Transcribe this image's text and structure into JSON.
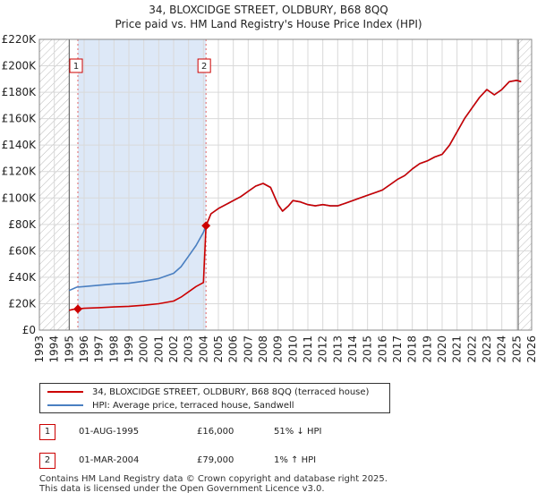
{
  "chart_data": {
    "type": "line",
    "title": "34, BLOXCIDGE STREET, OLDBURY, B68 8QQ",
    "subtitle": "Price paid vs. HM Land Registry's House Price Index (HPI)",
    "xlim": [
      1993,
      2026
    ],
    "ylim": [
      0,
      220000
    ],
    "x_ticks": [
      1993,
      1994,
      1995,
      1996,
      1997,
      1998,
      1999,
      2000,
      2001,
      2002,
      2003,
      2004,
      2005,
      2006,
      2007,
      2008,
      2009,
      2010,
      2011,
      2012,
      2013,
      2014,
      2015,
      2016,
      2017,
      2018,
      2019,
      2020,
      2021,
      2022,
      2023,
      2024,
      2025,
      2026
    ],
    "y_ticks": [
      0,
      20000,
      40000,
      60000,
      80000,
      100000,
      120000,
      140000,
      160000,
      180000,
      200000,
      220000
    ],
    "y_tick_labels": [
      "£0",
      "£20K",
      "£40K",
      "£60K",
      "£80K",
      "£100K",
      "£120K",
      "£140K",
      "£160K",
      "£180K",
      "£200K",
      "£220K"
    ],
    "grid": true,
    "hatched_ranges": [
      [
        1993,
        1995.0
      ],
      [
        2025.1,
        2026
      ]
    ],
    "shaded_range": [
      1995.58,
      2004.17
    ],
    "series": [
      {
        "name": "34, BLOXCIDGE STREET, OLDBURY, B68 8QQ (terraced house)",
        "color": "#cc0000",
        "points": [
          [
            1995.0,
            15000
          ],
          [
            1995.3,
            15800
          ],
          [
            1995.58,
            16000
          ],
          [
            1996.0,
            16500
          ],
          [
            1997.0,
            17000
          ],
          [
            1998.0,
            17500
          ],
          [
            1999.0,
            18000
          ],
          [
            2000.0,
            18800
          ],
          [
            2001.0,
            20000
          ],
          [
            2002.0,
            22000
          ],
          [
            2002.5,
            25000
          ],
          [
            2003.0,
            29000
          ],
          [
            2003.5,
            33000
          ],
          [
            2004.0,
            36000
          ],
          [
            2004.17,
            79000
          ],
          [
            2004.5,
            88000
          ],
          [
            2005.0,
            92000
          ],
          [
            2005.5,
            95000
          ],
          [
            2006.0,
            98000
          ],
          [
            2006.5,
            101000
          ],
          [
            2007.0,
            105000
          ],
          [
            2007.5,
            109000
          ],
          [
            2008.0,
            111000
          ],
          [
            2008.5,
            108000
          ],
          [
            2009.0,
            95000
          ],
          [
            2009.3,
            90000
          ],
          [
            2009.7,
            94000
          ],
          [
            2010.0,
            98000
          ],
          [
            2010.5,
            97000
          ],
          [
            2011.0,
            95000
          ],
          [
            2011.5,
            94000
          ],
          [
            2012.0,
            95000
          ],
          [
            2012.5,
            94000
          ],
          [
            2013.0,
            94000
          ],
          [
            2013.5,
            96000
          ],
          [
            2014.0,
            98000
          ],
          [
            2014.5,
            100000
          ],
          [
            2015.0,
            102000
          ],
          [
            2015.5,
            104000
          ],
          [
            2016.0,
            106000
          ],
          [
            2016.5,
            110000
          ],
          [
            2017.0,
            114000
          ],
          [
            2017.5,
            117000
          ],
          [
            2018.0,
            122000
          ],
          [
            2018.5,
            126000
          ],
          [
            2019.0,
            128000
          ],
          [
            2019.5,
            131000
          ],
          [
            2020.0,
            133000
          ],
          [
            2020.5,
            140000
          ],
          [
            2021.0,
            150000
          ],
          [
            2021.5,
            160000
          ],
          [
            2022.0,
            168000
          ],
          [
            2022.5,
            176000
          ],
          [
            2023.0,
            182000
          ],
          [
            2023.5,
            178000
          ],
          [
            2024.0,
            182000
          ],
          [
            2024.5,
            188000
          ],
          [
            2025.0,
            189000
          ],
          [
            2025.3,
            188000
          ]
        ]
      },
      {
        "name": "HPI: Average price, terraced house, Sandwell",
        "color": "#4a7fc1",
        "points": [
          [
            1995.0,
            30000
          ],
          [
            1995.5,
            32500
          ],
          [
            1996.0,
            33000
          ],
          [
            1997.0,
            34000
          ],
          [
            1998.0,
            35000
          ],
          [
            1999.0,
            35500
          ],
          [
            2000.0,
            37000
          ],
          [
            2001.0,
            39000
          ],
          [
            2002.0,
            43000
          ],
          [
            2002.5,
            48000
          ],
          [
            2003.0,
            56000
          ],
          [
            2003.5,
            64000
          ],
          [
            2004.0,
            74000
          ],
          [
            2004.17,
            79000
          ],
          [
            2004.5,
            88000
          ],
          [
            2005.0,
            92000
          ],
          [
            2005.5,
            95000
          ],
          [
            2006.0,
            98000
          ],
          [
            2006.5,
            101000
          ],
          [
            2007.0,
            105000
          ],
          [
            2007.5,
            109000
          ],
          [
            2008.0,
            111000
          ],
          [
            2008.5,
            108000
          ],
          [
            2009.0,
            95000
          ],
          [
            2009.3,
            90000
          ],
          [
            2009.7,
            94000
          ],
          [
            2010.0,
            98000
          ],
          [
            2010.5,
            97000
          ],
          [
            2011.0,
            95000
          ],
          [
            2011.5,
            94000
          ],
          [
            2012.0,
            95000
          ],
          [
            2012.5,
            94000
          ],
          [
            2013.0,
            94000
          ],
          [
            2013.5,
            96000
          ],
          [
            2014.0,
            98000
          ],
          [
            2014.5,
            100000
          ],
          [
            2015.0,
            102000
          ],
          [
            2015.5,
            104000
          ],
          [
            2016.0,
            106000
          ],
          [
            2016.5,
            110000
          ],
          [
            2017.0,
            114000
          ],
          [
            2017.5,
            117000
          ],
          [
            2018.0,
            122000
          ],
          [
            2018.5,
            126000
          ],
          [
            2019.0,
            128000
          ],
          [
            2019.5,
            131000
          ],
          [
            2020.0,
            133000
          ],
          [
            2020.5,
            140000
          ],
          [
            2021.0,
            150000
          ],
          [
            2021.5,
            160000
          ],
          [
            2022.0,
            168000
          ],
          [
            2022.5,
            176000
          ],
          [
            2023.0,
            182000
          ],
          [
            2023.5,
            178000
          ],
          [
            2024.0,
            182000
          ],
          [
            2024.5,
            188000
          ],
          [
            2025.0,
            189000
          ],
          [
            2025.3,
            188000
          ]
        ]
      }
    ],
    "sales": [
      {
        "id": "1",
        "x": 1995.58,
        "value": 16000
      },
      {
        "id": "2",
        "x": 2004.17,
        "value": 79000
      }
    ]
  },
  "legend": {
    "property_label": "34, BLOXCIDGE STREET, OLDBURY, B68 8QQ (terraced house)",
    "hpi_label": "HPI: Average price, terraced house, Sandwell"
  },
  "colors": {
    "property_line": "#cc0000",
    "hpi_line": "#4a7fc1",
    "shade": "#dde8f7"
  },
  "sales_table": [
    {
      "id": "1",
      "date": "01-AUG-1995",
      "price": "£16,000",
      "hpi": "51% ↓ HPI"
    },
    {
      "id": "2",
      "date": "01-MAR-2004",
      "price": "£79,000",
      "hpi": "1% ↑ HPI"
    }
  ],
  "footer": {
    "line1": "Contains HM Land Registry data © Crown copyright and database right 2025.",
    "line2": "This data is licensed under the Open Government Licence v3.0."
  }
}
